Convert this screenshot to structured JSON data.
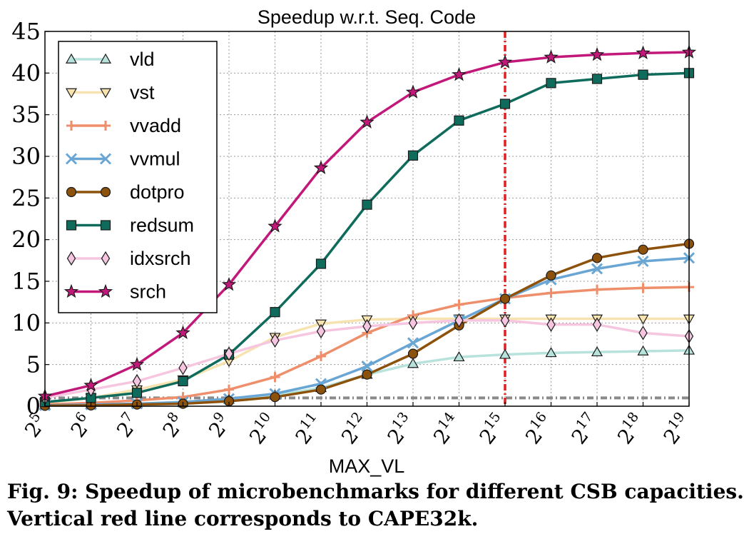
{
  "caption": {
    "line1": "Fig. 9: Speedup of microbenchmarks for different CSB capacities.",
    "line2": "Vertical red line corresponds to CAPE32k."
  },
  "chart_data": {
    "type": "line",
    "title": "Speedup w.r.t. Seq. Code",
    "xlabel": "MAX_VL",
    "ylabel": "",
    "x": [
      5,
      6,
      7,
      8,
      9,
      10,
      11,
      12,
      13,
      14,
      15,
      16,
      17,
      18,
      19
    ],
    "x_tick_base": "2",
    "ylim": [
      0,
      45
    ],
    "yticks": [
      0,
      5,
      10,
      15,
      20,
      25,
      30,
      35,
      40,
      45
    ],
    "grid": true,
    "legend_position": "top-left",
    "vertical_line": {
      "x": 15,
      "color": "#e02020"
    },
    "baseline": {
      "y": 1,
      "color": "#8a8a8a"
    },
    "series": [
      {
        "name": "vld",
        "color": "#b7e3dc",
        "marker": "triangle-up",
        "values": [
          0.1,
          0.2,
          0.3,
          0.5,
          0.8,
          1.3,
          2.2,
          3.8,
          5.1,
          5.9,
          6.2,
          6.4,
          6.5,
          6.6,
          6.7
        ]
      },
      {
        "name": "vst",
        "color": "#f7e3b0",
        "marker": "triangle-down",
        "values": [
          0.4,
          1.0,
          2.0,
          3.2,
          5.4,
          8.3,
          9.9,
          10.4,
          10.5,
          10.5,
          10.5,
          10.5,
          10.5,
          10.5,
          10.5
        ]
      },
      {
        "name": "vvadd",
        "color": "#ef8e6a",
        "marker": "plus",
        "values": [
          0.2,
          0.4,
          0.7,
          1.1,
          2.0,
          3.5,
          6.0,
          8.8,
          10.9,
          12.2,
          13.0,
          13.6,
          14.0,
          14.2,
          14.3
        ]
      },
      {
        "name": "vvmul",
        "color": "#6aa6d4",
        "marker": "x",
        "values": [
          0.1,
          0.2,
          0.3,
          0.5,
          0.9,
          1.5,
          2.7,
          4.8,
          7.6,
          10.3,
          12.9,
          15.2,
          16.5,
          17.4,
          17.8
        ]
      },
      {
        "name": "dotpro",
        "color": "#8c510a",
        "marker": "circle",
        "values": [
          0.05,
          0.1,
          0.2,
          0.3,
          0.6,
          1.1,
          2.0,
          3.8,
          6.3,
          9.7,
          12.9,
          15.7,
          17.8,
          18.8,
          19.5
        ]
      },
      {
        "name": "redsum",
        "color": "#0f6b5c",
        "marker": "square",
        "values": [
          0.5,
          1.0,
          1.6,
          3.0,
          6.2,
          11.3,
          17.1,
          24.2,
          30.1,
          34.3,
          36.3,
          38.8,
          39.3,
          39.8,
          40.0
        ]
      },
      {
        "name": "idxsrch",
        "color": "#f6c6e0",
        "marker": "diamond",
        "values": [
          1.0,
          2.0,
          3.0,
          4.6,
          6.3,
          7.9,
          9.0,
          9.6,
          10.0,
          10.3,
          10.3,
          9.8,
          9.8,
          8.8,
          8.4
        ]
      },
      {
        "name": "srch",
        "color": "#c2187a",
        "marker": "star",
        "values": [
          1.2,
          2.5,
          5.0,
          8.8,
          14.6,
          21.6,
          28.6,
          34.1,
          37.7,
          39.8,
          41.3,
          41.9,
          42.2,
          42.4,
          42.5
        ]
      }
    ]
  }
}
